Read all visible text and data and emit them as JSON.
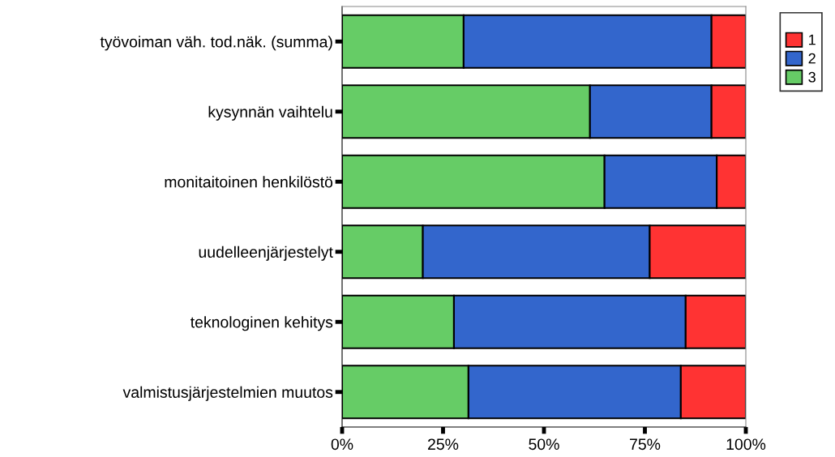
{
  "chart_data": {
    "type": "bar",
    "orientation": "horizontal",
    "stacked": true,
    "categories": [
      "työvoiman väh. tod.näk. (summa)",
      "kysynnän vaihtelu",
      "monitaitoinen henkilöstö",
      "uudelleenjärjestelyt",
      "teknologinen kehitys",
      "valmistusjärjestelmien muutos"
    ],
    "series": [
      {
        "name": "3",
        "color": "#66cc66",
        "values": [
          30.1,
          61.4,
          65.0,
          20.0,
          27.7,
          31.3
        ]
      },
      {
        "name": "2",
        "color": "#3366cc",
        "values": [
          61.4,
          30.1,
          27.8,
          56.2,
          57.4,
          52.6
        ]
      },
      {
        "name": "1",
        "color": "#ff3333",
        "values": [
          8.5,
          8.5,
          7.2,
          23.8,
          14.9,
          16.1
        ]
      }
    ],
    "xlim": [
      0,
      100
    ],
    "xticks": [
      {
        "value": 0,
        "label": "0%"
      },
      {
        "value": 25,
        "label": "25%"
      },
      {
        "value": 50,
        "label": "50%"
      },
      {
        "value": 75,
        "label": "75%"
      },
      {
        "value": 100,
        "label": "100%"
      }
    ],
    "grid": false,
    "legend": "right"
  }
}
